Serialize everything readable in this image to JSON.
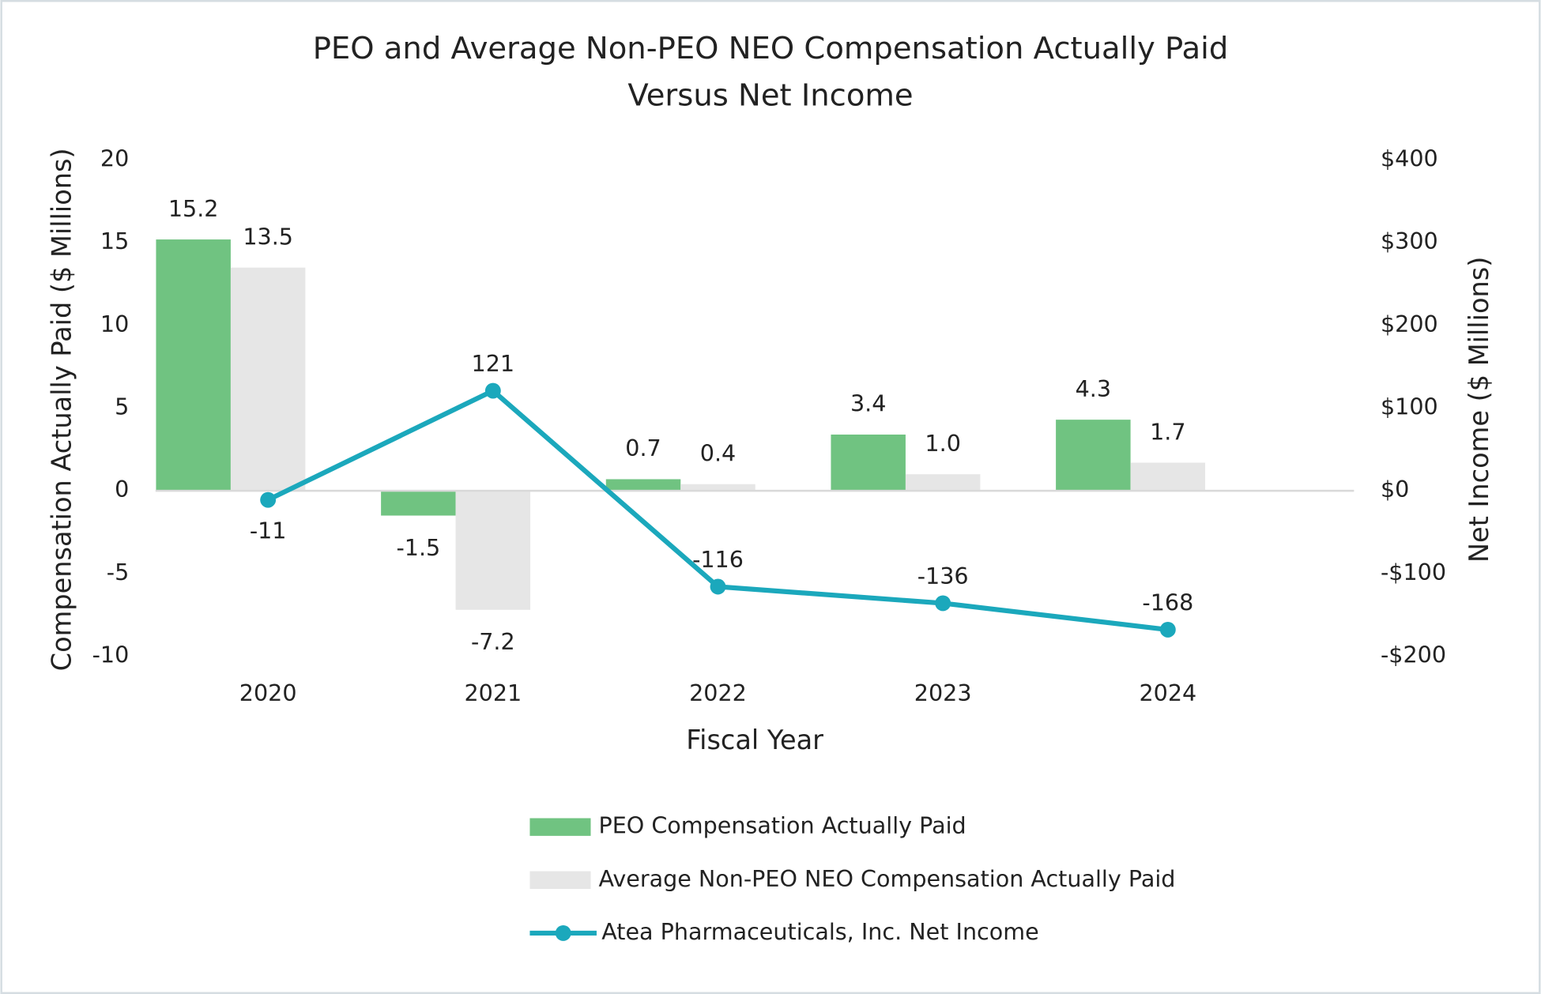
{
  "chart_data": {
    "type": "bar",
    "title": [
      "PEO and Average Non-PEO NEO Compensation Actually Paid",
      "Versus Net Income"
    ],
    "x_label": "Fiscal Year",
    "y_label": "Compensation Actually Paid ($ Millions)",
    "y2_label": "Net Income ($ Millions)",
    "categories": [
      "2020",
      "2021",
      "2022",
      "2023",
      "2024"
    ],
    "ylim": [
      -10,
      20
    ],
    "yticks": [
      -10,
      -5,
      0,
      5,
      10,
      15,
      20
    ],
    "y2lim": [
      -200,
      400
    ],
    "y2ticks": [
      {
        "value": -200,
        "label": "-$200"
      },
      {
        "value": -100,
        "label": "-$100"
      },
      {
        "value": 0,
        "label": "$0"
      },
      {
        "value": 100,
        "label": "$100"
      },
      {
        "value": 200,
        "label": "$200"
      },
      {
        "value": 300,
        "label": "$300"
      },
      {
        "value": 400,
        "label": "$400"
      }
    ],
    "series": [
      {
        "name": "PEO Compensation Actually Paid",
        "type": "bar",
        "color": "#70c381",
        "values": [
          15.2,
          -1.5,
          0.7,
          3.4,
          4.3
        ]
      },
      {
        "name": "Average Non-PEO NEO Compensation Actually Paid",
        "type": "bar",
        "color": "#e6e6e6",
        "values": [
          13.5,
          -7.2,
          0.4,
          1.0,
          1.7
        ],
        "value_labels": [
          "13.5",
          "-7.2",
          "0.4",
          "1.0",
          "1.7"
        ]
      },
      {
        "name": "Atea Pharmaceuticals, Inc. Net Income",
        "type": "line",
        "axis": "y2",
        "color": "#1ba8bc",
        "values": [
          -11,
          121,
          -116,
          -136,
          -168
        ]
      }
    ]
  }
}
